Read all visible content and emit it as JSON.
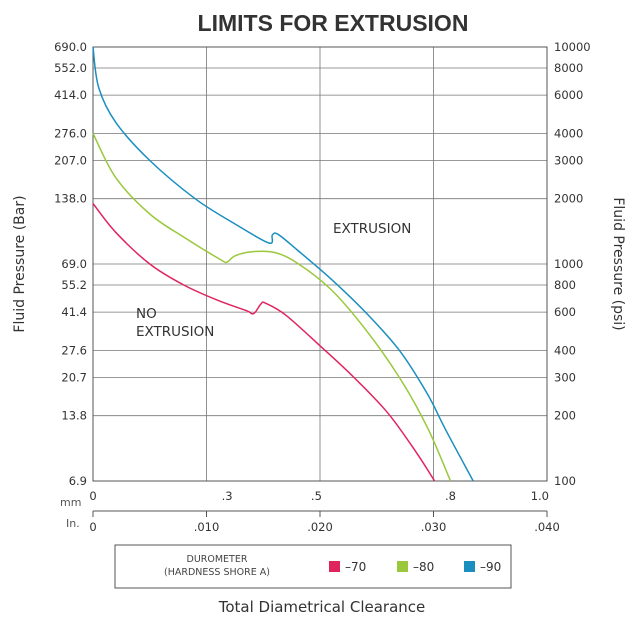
{
  "chart_data": {
    "type": "line",
    "title": "LIMITS FOR EXTRUSION",
    "xlabel": "Total Diametrical Clearance",
    "ylabel_left": "Fluid Pressure (Bar)",
    "ylabel_right": "Fluid Pressure (psi)",
    "y_scale": "log",
    "ylim_psi": [
      100,
      10000
    ],
    "y_ticks_psi": [
      100,
      200,
      300,
      400,
      600,
      800,
      1000,
      2000,
      3000,
      4000,
      6000,
      8000,
      10000
    ],
    "y_ticks_right_labels": [
      "100",
      "200",
      "300",
      "400",
      "600",
      "800",
      "1000",
      "2000",
      "3000",
      "4000",
      "6000",
      "8000",
      "10000"
    ],
    "y_ticks_left_labels": [
      "6.9",
      "13.8",
      "20.7",
      "27.6",
      "41.4",
      "55.2",
      "69.0",
      "138.0",
      "207.0",
      "276.0",
      "414.0",
      "552.0",
      "690.0"
    ],
    "x_unit_mm": "mm",
    "x_unit_in": "In.",
    "x_ticks_mm": [
      "0",
      ".3",
      ".5",
      ".8",
      "1.0"
    ],
    "x_ticks_in": [
      "0",
      ".010",
      ".020",
      ".030",
      ".040"
    ],
    "xlim_in": [
      0,
      0.04
    ],
    "grid": true,
    "legend_title_line1": "DUROMETER",
    "legend_title_line2": "(HARDNESS SHORE A)",
    "annotation_extrusion": "EXTRUSION",
    "annotation_no_extrusion_line1": "NO",
    "annotation_no_extrusion_line2": "EXTRUSION",
    "series": [
      {
        "name": "–70",
        "color": "#e0245e",
        "x": [
          0.0,
          0.002,
          0.005,
          0.008,
          0.011,
          0.0135,
          0.014,
          0.0143,
          0.0148,
          0.0152,
          0.017,
          0.02,
          0.023,
          0.026,
          0.0285,
          0.0301
        ],
        "y": [
          1900,
          1400,
          1000,
          800,
          680,
          610,
          590,
          600,
          655,
          660,
          580,
          420,
          300,
          205,
          135,
          100
        ]
      },
      {
        "name": "–80",
        "color": "#9ac83c",
        "x": [
          0.0,
          0.002,
          0.005,
          0.008,
          0.0112,
          0.0118,
          0.0125,
          0.014,
          0.016,
          0.018,
          0.021,
          0.024,
          0.027,
          0.0295,
          0.0315
        ],
        "y": [
          4000,
          2500,
          1700,
          1330,
          1050,
          1020,
          1090,
          1140,
          1130,
          1010,
          760,
          500,
          300,
          175,
          100
        ]
      },
      {
        "name": "–90",
        "color": "#1a8fbf",
        "x": [
          0.0,
          0.0005,
          0.002,
          0.005,
          0.009,
          0.0125,
          0.0155,
          0.0158,
          0.0163,
          0.018,
          0.021,
          0.024,
          0.027,
          0.0295,
          0.031,
          0.0335
        ],
        "y": [
          10000,
          6500,
          4500,
          3000,
          2000,
          1530,
          1250,
          1360,
          1370,
          1160,
          850,
          600,
          400,
          250,
          175,
          100
        ]
      }
    ]
  }
}
